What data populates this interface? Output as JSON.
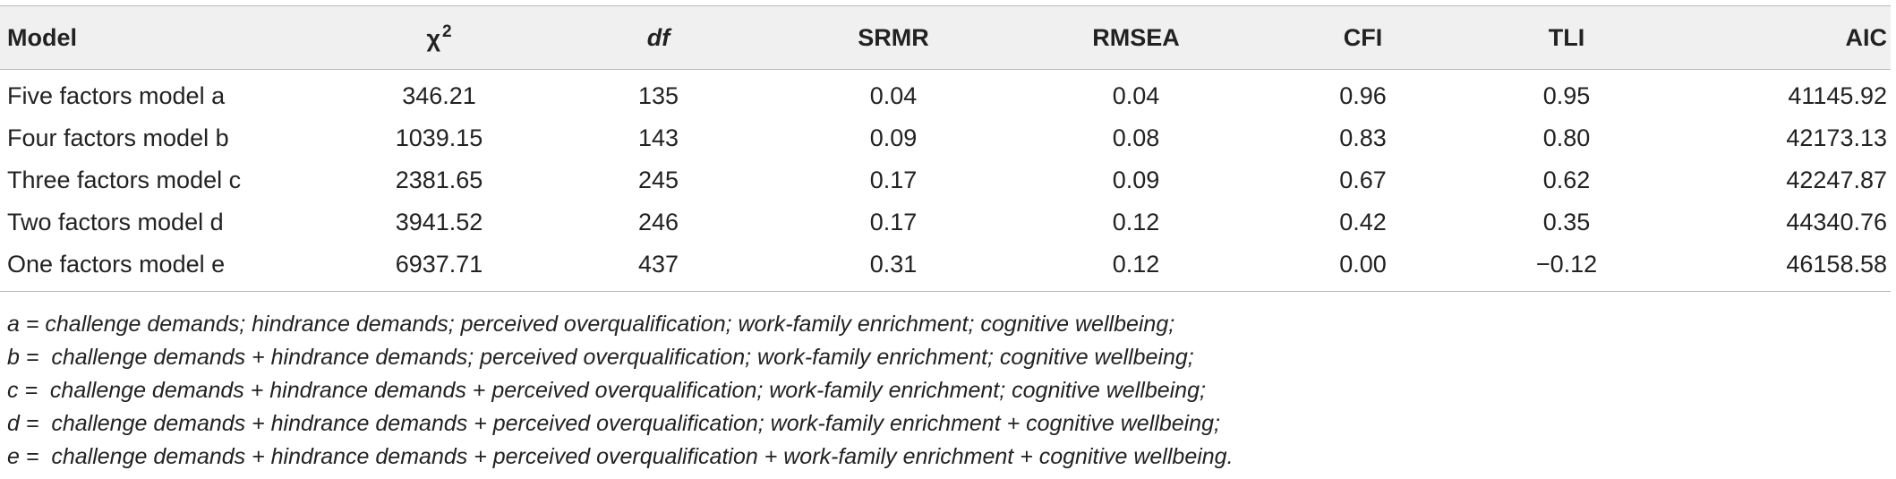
{
  "table": {
    "headers": {
      "model": "Model",
      "chi_symbol": "χ",
      "chi_exponent": "2",
      "df": "df",
      "srmr": "SRMR",
      "rmsea": "RMSEA",
      "cfi": "CFI",
      "tli": "TLI",
      "aic": "AIC"
    },
    "rows": [
      {
        "model": "Five factors model a",
        "chi": "346.21",
        "df": "135",
        "srmr": "0.04",
        "rmsea": "0.04",
        "cfi": "0.96",
        "tli": "0.95",
        "aic": "41145.92"
      },
      {
        "model": "Four factors model b",
        "chi": "1039.15",
        "df": "143",
        "srmr": "0.09",
        "rmsea": "0.08",
        "cfi": "0.83",
        "tli": "0.80",
        "aic": "42173.13"
      },
      {
        "model": "Three factors model c",
        "chi": "2381.65",
        "df": "245",
        "srmr": "0.17",
        "rmsea": "0.09",
        "cfi": "0.67",
        "tli": "0.62",
        "aic": "42247.87"
      },
      {
        "model": "Two factors model d",
        "chi": "3941.52",
        "df": "246",
        "srmr": "0.17",
        "rmsea": "0.12",
        "cfi": "0.42",
        "tli": "0.35",
        "aic": "44340.76"
      },
      {
        "model": "One factors model e",
        "chi": "6937.71",
        "df": "437",
        "srmr": "0.31",
        "rmsea": "0.12",
        "cfi": "0.00",
        "tli": "−0.12",
        "aic": "46158.58"
      }
    ]
  },
  "notes": [
    "a = challenge demands; hindrance demands; perceived overqualification; work-family enrichment; cognitive wellbeing;",
    "b =  challenge demands + hindrance demands; perceived overqualification; work-family enrichment; cognitive wellbeing;",
    "c =  challenge demands + hindrance demands + perceived overqualification; work-family enrichment; cognitive wellbeing;",
    "d =  challenge demands + hindrance demands + perceived overqualification; work-family enrichment + cognitive wellbeing;",
    "e =  challenge demands + hindrance demands + perceived overqualification + work-family enrichment + cognitive wellbeing."
  ]
}
